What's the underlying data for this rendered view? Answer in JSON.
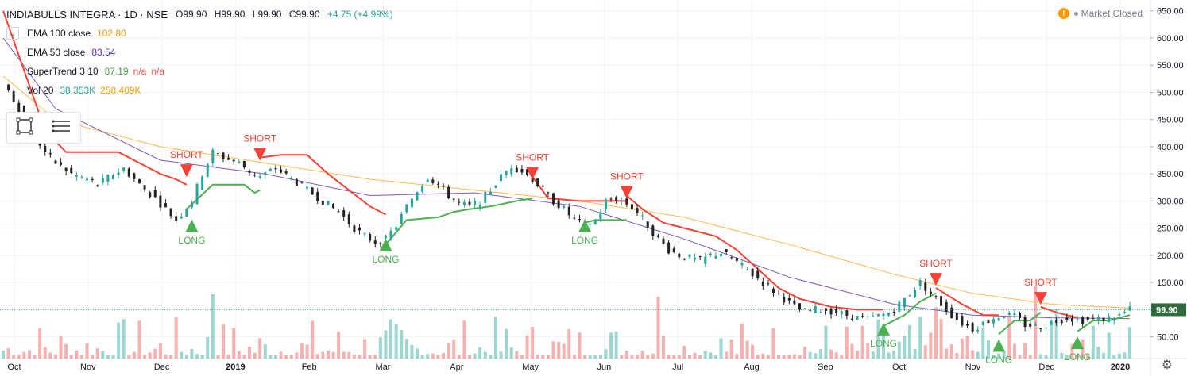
{
  "header": {
    "symbol_title": "INDIABULLS INTEGRA · 1D · NSE",
    "ohlc": {
      "open": "O99.90",
      "high": "H99.90",
      "low": "L99.90",
      "close": "C99.90",
      "change": "+4.75 (+4.99%)"
    }
  },
  "indicators": [
    {
      "name": "EMA 100 close",
      "values": [
        "102.80"
      ],
      "colors": [
        "#ff9800"
      ]
    },
    {
      "name": "EMA 50 close",
      "values": [
        "83.54"
      ],
      "colors": [
        "#5e35b1"
      ]
    },
    {
      "name": "SuperTrend 3 10",
      "values": [
        "87.19",
        "n/a",
        "n/a"
      ],
      "colors": [
        "#43a047",
        "#ef5350",
        "#ef5350"
      ]
    },
    {
      "name": "Vol 20",
      "values": [
        "38.353K",
        "258.409K"
      ],
      "colors": [
        "#26a69a",
        "#ff9800"
      ]
    }
  ],
  "status": {
    "alert_icon": "warning-icon",
    "text": "Market Closed"
  },
  "toolbox": {
    "icons": [
      "rectangle-select-icon",
      "menu-lines-icon"
    ]
  },
  "colors": {
    "up": "#26a69a",
    "down": "#ef5350",
    "ema100": "#ffb74d",
    "ema50": "#7e57c2",
    "st_up": "#4caf50",
    "st_down": "#f44336",
    "price_label_bg": "#2f6b3c"
  },
  "chart_data": {
    "type": "candlestick",
    "title": "INDIABULLS INTEGRA · 1D · NSE",
    "x_tick_labels": [
      "Oct",
      "Nov",
      "Dec",
      "2019",
      "Feb",
      "Mar",
      "Apr",
      "May",
      "Jun",
      "Jul",
      "Aug",
      "Sep",
      "Oct",
      "Nov",
      "Dec",
      "2020"
    ],
    "y_tick_labels": [
      "50.00",
      "100.00",
      "150.00",
      "200.00",
      "250.00",
      "300.00",
      "350.00",
      "400.00",
      "450.00",
      "500.00",
      "550.00",
      "600.00",
      "650.00"
    ],
    "ylim": [
      10,
      670
    ],
    "last_price_label": "99.90",
    "last_price": 99.9,
    "close_series": [
      [
        0,
        520
      ],
      [
        3,
        470
      ],
      [
        6,
        420
      ],
      [
        8,
        390
      ],
      [
        10,
        370
      ],
      [
        13,
        350
      ],
      [
        16,
        340
      ],
      [
        18,
        330
      ],
      [
        21,
        350
      ],
      [
        23,
        360
      ],
      [
        26,
        330
      ],
      [
        29,
        305
      ],
      [
        31,
        285
      ],
      [
        33,
        265
      ],
      [
        36,
        300
      ],
      [
        38,
        350
      ],
      [
        40,
        390
      ],
      [
        42,
        380
      ],
      [
        45,
        370
      ],
      [
        47,
        355
      ],
      [
        49,
        345
      ],
      [
        52,
        360
      ],
      [
        55,
        340
      ],
      [
        58,
        320
      ],
      [
        61,
        300
      ],
      [
        64,
        280
      ],
      [
        67,
        250
      ],
      [
        69,
        235
      ],
      [
        71,
        225
      ],
      [
        73,
        230
      ],
      [
        75,
        255
      ],
      [
        77,
        290
      ],
      [
        79,
        320
      ],
      [
        81,
        345
      ],
      [
        83,
        330
      ],
      [
        85,
        310
      ],
      [
        87,
        295
      ],
      [
        89,
        290
      ],
      [
        91,
        300
      ],
      [
        93,
        320
      ],
      [
        95,
        345
      ],
      [
        97,
        365
      ],
      [
        99,
        355
      ],
      [
        101,
        340
      ],
      [
        103,
        320
      ],
      [
        105,
        300
      ],
      [
        107,
        285
      ],
      [
        109,
        265
      ],
      [
        111,
        255
      ],
      [
        113,
        265
      ],
      [
        115,
        300
      ],
      [
        117,
        305
      ],
      [
        119,
        295
      ],
      [
        121,
        280
      ],
      [
        123,
        255
      ],
      [
        125,
        230
      ],
      [
        127,
        210
      ],
      [
        129,
        200
      ],
      [
        131,
        195
      ],
      [
        133,
        190
      ],
      [
        135,
        200
      ],
      [
        137,
        205
      ],
      [
        139,
        195
      ],
      [
        141,
        180
      ],
      [
        143,
        165
      ],
      [
        145,
        150
      ],
      [
        147,
        135
      ],
      [
        149,
        120
      ],
      [
        151,
        105
      ],
      [
        153,
        95
      ],
      [
        155,
        100
      ],
      [
        157,
        100
      ],
      [
        159,
        95
      ],
      [
        161,
        90
      ],
      [
        163,
        85
      ],
      [
        165,
        82
      ],
      [
        167,
        88
      ],
      [
        169,
        95
      ],
      [
        171,
        110
      ],
      [
        173,
        130
      ],
      [
        175,
        150
      ],
      [
        177,
        130
      ],
      [
        179,
        110
      ],
      [
        181,
        90
      ],
      [
        183,
        75
      ],
      [
        185,
        65
      ],
      [
        187,
        75
      ],
      [
        189,
        85
      ],
      [
        191,
        90
      ],
      [
        193,
        88
      ],
      [
        195,
        72
      ],
      [
        197,
        70
      ],
      [
        199,
        72
      ],
      [
        201,
        80
      ],
      [
        203,
        85
      ],
      [
        205,
        82
      ],
      [
        207,
        80
      ],
      [
        209,
        82
      ],
      [
        211,
        85
      ],
      [
        213,
        90
      ],
      [
        215,
        99.9
      ]
    ],
    "ema100_series": [
      [
        0,
        530
      ],
      [
        10,
        450
      ],
      [
        30,
        400
      ],
      [
        50,
        370
      ],
      [
        70,
        340
      ],
      [
        90,
        320
      ],
      [
        110,
        300
      ],
      [
        130,
        270
      ],
      [
        150,
        220
      ],
      [
        170,
        165
      ],
      [
        185,
        130
      ],
      [
        200,
        110
      ],
      [
        215,
        102.8
      ]
    ],
    "ema50_series": [
      [
        0,
        600
      ],
      [
        10,
        470
      ],
      [
        30,
        375
      ],
      [
        50,
        350
      ],
      [
        70,
        310
      ],
      [
        90,
        315
      ],
      [
        110,
        290
      ],
      [
        130,
        230
      ],
      [
        150,
        160
      ],
      [
        170,
        110
      ],
      [
        185,
        90
      ],
      [
        200,
        85
      ],
      [
        215,
        83.54
      ]
    ],
    "supertrend_segments": [
      {
        "trend": "down",
        "points": [
          [
            0,
            650
          ],
          [
            8,
            430
          ],
          [
            12,
            390
          ],
          [
            22,
            390
          ],
          [
            26,
            370
          ],
          [
            30,
            350
          ],
          [
            33,
            340
          ],
          [
            35,
            330
          ]
        ]
      },
      {
        "trend": "up",
        "points": [
          [
            35,
            285
          ],
          [
            40,
            330
          ],
          [
            46,
            330
          ],
          [
            48,
            315
          ],
          [
            49,
            320
          ]
        ]
      },
      {
        "trend": "down",
        "points": [
          [
            49,
            380
          ],
          [
            53,
            385
          ],
          [
            58,
            385
          ],
          [
            62,
            350
          ],
          [
            66,
            320
          ],
          [
            70,
            290
          ],
          [
            73,
            275
          ]
        ]
      },
      {
        "trend": "up",
        "points": [
          [
            73,
            220
          ],
          [
            77,
            265
          ],
          [
            83,
            270
          ],
          [
            86,
            280
          ],
          [
            89,
            285
          ],
          [
            93,
            290
          ],
          [
            98,
            300
          ],
          [
            101,
            305
          ]
        ]
      },
      {
        "trend": "down",
        "points": [
          [
            101,
            345
          ],
          [
            104,
            305
          ],
          [
            110,
            300
          ],
          [
            113,
            300
          ],
          [
            117,
            300
          ],
          [
            119,
            300
          ]
        ]
      },
      {
        "trend": "up",
        "points": [
          [
            111,
            260
          ],
          [
            113,
            265
          ],
          [
            117,
            265
          ],
          [
            119,
            265
          ]
        ]
      },
      {
        "trend": "down",
        "points": [
          [
            119,
            310
          ],
          [
            122,
            285
          ],
          [
            126,
            260
          ],
          [
            130,
            250
          ],
          [
            136,
            235
          ],
          [
            140,
            210
          ],
          [
            144,
            175
          ],
          [
            148,
            140
          ],
          [
            152,
            120
          ],
          [
            158,
            105
          ],
          [
            163,
            100
          ],
          [
            168,
            100
          ]
        ]
      },
      {
        "trend": "up",
        "points": [
          [
            168,
            70
          ],
          [
            172,
            90
          ],
          [
            175,
            115
          ],
          [
            178,
            130
          ]
        ]
      },
      {
        "trend": "down",
        "points": [
          [
            178,
            140
          ],
          [
            183,
            110
          ],
          [
            187,
            90
          ],
          [
            190,
            90
          ]
        ]
      },
      {
        "trend": "up",
        "points": [
          [
            190,
            55
          ],
          [
            193,
            80
          ],
          [
            196,
            80
          ],
          [
            198,
            95
          ]
        ]
      },
      {
        "trend": "down",
        "points": [
          [
            198,
            105
          ],
          [
            201,
            95
          ],
          [
            205,
            85
          ]
        ]
      },
      {
        "trend": "up",
        "points": [
          [
            205,
            60
          ],
          [
            208,
            80
          ],
          [
            211,
            80
          ],
          [
            213,
            85
          ],
          [
            215,
            90
          ]
        ]
      }
    ],
    "signals": [
      {
        "type": "SHORT",
        "x": 35,
        "y": 350
      },
      {
        "type": "LONG",
        "x": 36,
        "y": 260
      },
      {
        "type": "SHORT",
        "x": 49,
        "y": 380
      },
      {
        "type": "LONG",
        "x": 73,
        "y": 225
      },
      {
        "type": "SHORT",
        "x": 101,
        "y": 345
      },
      {
        "type": "LONG",
        "x": 111,
        "y": 260
      },
      {
        "type": "SHORT",
        "x": 119,
        "y": 310
      },
      {
        "type": "LONG",
        "x": 168,
        "y": 70
      },
      {
        "type": "SHORT",
        "x": 178,
        "y": 150
      },
      {
        "type": "LONG",
        "x": 190,
        "y": 40
      },
      {
        "type": "SHORT",
        "x": 198,
        "y": 115
      },
      {
        "type": "LONG",
        "x": 205,
        "y": 45
      }
    ]
  }
}
